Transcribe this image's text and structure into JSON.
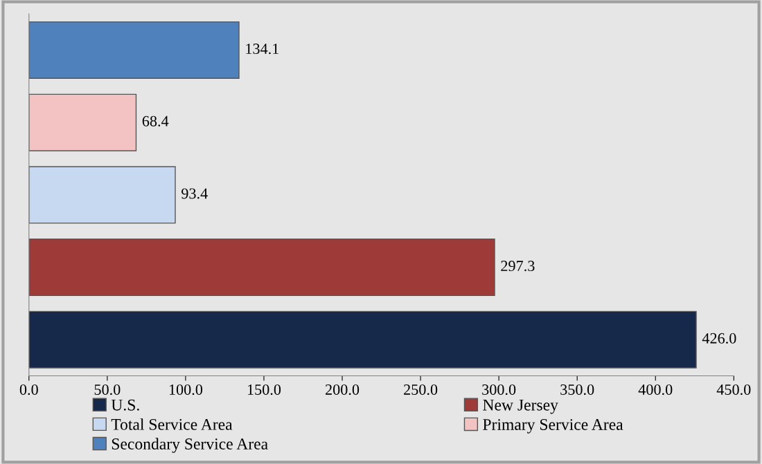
{
  "chart_data": {
    "type": "bar",
    "orientation": "horizontal",
    "categories": [
      null,
      null,
      null,
      null,
      null
    ],
    "series": [
      {
        "name": "U.S.",
        "color": "#17294a",
        "values": [
          null,
          null,
          null,
          null,
          426.0
        ],
        "value_labels": [
          null,
          null,
          null,
          null,
          "426.0"
        ]
      },
      {
        "name": "New Jersey",
        "color": "#9e3b39",
        "values": [
          null,
          null,
          null,
          297.3,
          null
        ],
        "value_labels": [
          null,
          null,
          null,
          "297.3",
          null
        ]
      },
      {
        "name": "Total Service Area",
        "color": "#c6d9f0",
        "values": [
          null,
          null,
          93.4,
          null,
          null
        ],
        "value_labels": [
          null,
          null,
          "93.4",
          null,
          null
        ]
      },
      {
        "name": "Primary Service Area",
        "color": "#f2c3c2",
        "values": [
          null,
          68.4,
          null,
          null,
          null
        ],
        "value_labels": [
          null,
          "68.4",
          null,
          null,
          null
        ]
      },
      {
        "name": "Secondary Service Area",
        "color": "#4f81bd",
        "values": [
          134.1,
          null,
          null,
          null,
          null
        ],
        "value_labels": [
          "134.1",
          null,
          null,
          null,
          null
        ]
      }
    ],
    "xlim": [
      0,
      450
    ],
    "xticks": [
      {
        "value": 0,
        "label": "0.0"
      },
      {
        "value": 50,
        "label": "50.0"
      },
      {
        "value": 100,
        "label": "100.0"
      },
      {
        "value": 150,
        "label": "150.0"
      },
      {
        "value": 200,
        "label": "200.0"
      },
      {
        "value": 250,
        "label": "250.0"
      },
      {
        "value": 300,
        "label": "300.0"
      },
      {
        "value": 350,
        "label": "350.0"
      },
      {
        "value": 400,
        "label": "400.0"
      },
      {
        "value": 450,
        "label": "450.0"
      }
    ],
    "grid": false,
    "legend": "bottom",
    "tick_labels": "x"
  }
}
